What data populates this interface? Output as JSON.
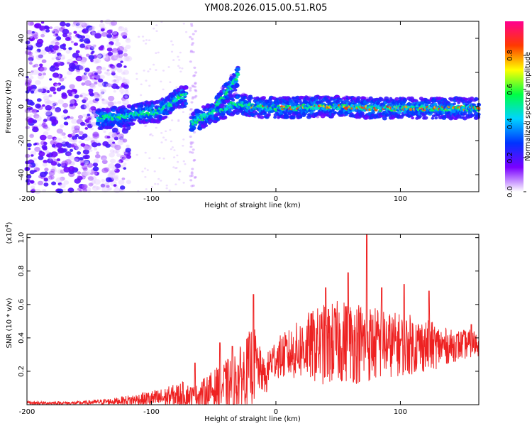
{
  "title": "YM08.2026.015.00.51.R05",
  "chart_data": [
    {
      "type": "heatmap",
      "xlabel": "Height of straight line (km)",
      "ylabel": "Frequency (Hz)",
      "xlim": [
        -200,
        163
      ],
      "ylim": [
        -50,
        50
      ],
      "xticks": [
        -200,
        -100,
        0,
        100
      ],
      "yticks": [
        -40,
        -20,
        0,
        20,
        40
      ],
      "colorbar": {
        "label": "Normalized spectral amplitude",
        "range": [
          0,
          1
        ],
        "ticks": [
          "0.0",
          "0.2",
          "0.4",
          "0.6",
          "0.8"
        ],
        "colors": [
          "#ffffff",
          "#7a00ff",
          "#0033ff",
          "#00d4ff",
          "#00ff44",
          "#ffff00",
          "#ff3a00",
          "#ff0090"
        ]
      },
      "features": [
        {
          "name": "noise-region",
          "x_range": [
            -200,
            -118
          ],
          "y_range": [
            -50,
            50
          ]
        },
        {
          "name": "ridge-left",
          "points": [
            [
              -143,
              -7
            ],
            [
              -125,
              -6
            ],
            [
              -110,
              -4
            ],
            [
              -95,
              -3
            ],
            [
              -83,
              2
            ],
            [
              -76,
              6
            ],
            [
              -72,
              6
            ]
          ]
        },
        {
          "name": "ridge-right",
          "points": [
            [
              -68,
              -10
            ],
            [
              -58,
              -6
            ],
            [
              -45,
              -2
            ],
            [
              -35,
              1
            ],
            [
              -30,
              2
            ],
            [
              -20,
              0
            ],
            [
              0,
              -1
            ],
            [
              40,
              0
            ],
            [
              80,
              -1
            ],
            [
              120,
              -1
            ],
            [
              163,
              -1
            ]
          ]
        },
        {
          "name": "branch-upper",
          "points": [
            [
              -48,
              0
            ],
            [
              -40,
              8
            ],
            [
              -33,
              15
            ],
            [
              -30,
              20
            ]
          ]
        }
      ]
    },
    {
      "type": "line",
      "xlabel": "Height of straight line (km)",
      "ylabel": "SNR (10 * v/v)",
      "ymultiplier": "(x10",
      "ymultiplier_exp": "4",
      "ymultiplier_close": ")",
      "xlim": [
        -200,
        163
      ],
      "ylim": [
        0,
        1.02
      ],
      "xticks": [
        -200,
        -100,
        0,
        100
      ],
      "yticks": [
        0.2,
        0.4,
        0.6,
        0.8,
        1.0
      ],
      "series": [
        {
          "color": "#ee2222",
          "envelope": {
            "x": [
              -200,
              -160,
              -130,
              -110,
              -90,
              -75,
              -65,
              -55,
              -45,
              -35,
              -25,
              -18,
              -12,
              -8,
              -5,
              0,
              10,
              25,
              40,
              55,
              70,
              90,
              110,
              125,
              140,
              163
            ],
            "base": [
              0.01,
              0.01,
              0.02,
              0.03,
              0.04,
              0.06,
              0.05,
              0.08,
              0.1,
              0.13,
              0.18,
              0.25,
              0.2,
              0.15,
              0.25,
              0.28,
              0.3,
              0.35,
              0.36,
              0.38,
              0.37,
              0.36,
              0.36,
              0.35,
              0.35,
              0.37
            ],
            "amp": [
              0.01,
              0.01,
              0.02,
              0.04,
              0.06,
              0.08,
              0.06,
              0.1,
              0.14,
              0.17,
              0.2,
              0.25,
              0.12,
              0.1,
              0.12,
              0.12,
              0.15,
              0.2,
              0.25,
              0.25,
              0.25,
              0.2,
              0.18,
              0.15,
              0.1,
              0.08
            ]
          },
          "peaks": [
            [
              -18,
              0.66
            ],
            [
              -35,
              0.35
            ],
            [
              -45,
              0.37
            ],
            [
              -65,
              0.25
            ],
            [
              40,
              0.7
            ],
            [
              58,
              0.79
            ],
            [
              73,
              1.02
            ],
            [
              85,
              0.7
            ],
            [
              103,
              0.72
            ],
            [
              123,
              0.68
            ],
            [
              157,
              0.48
            ]
          ]
        }
      ]
    }
  ]
}
